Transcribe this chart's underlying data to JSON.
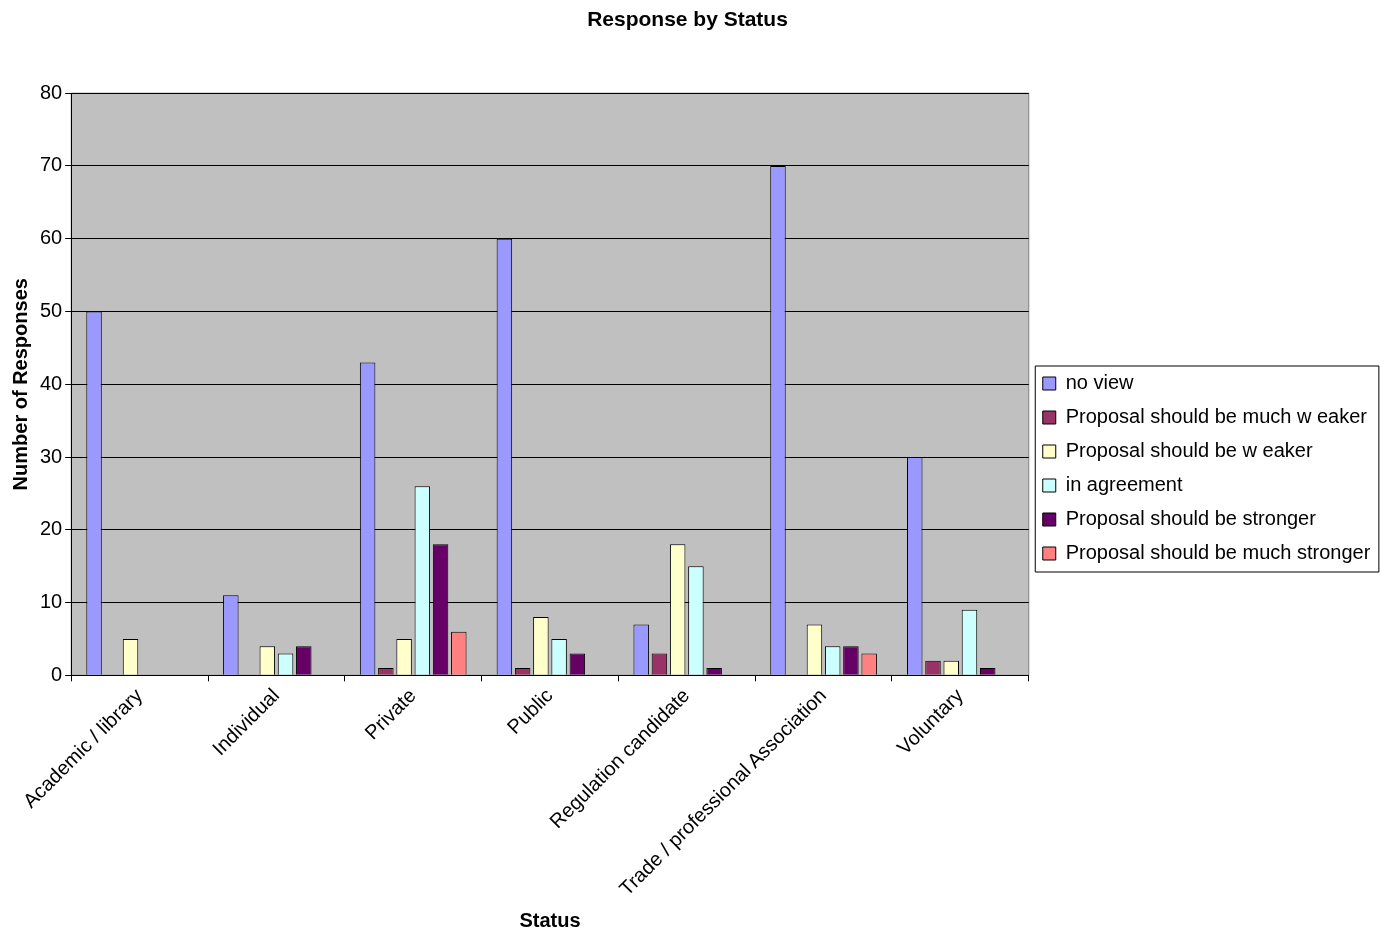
{
  "chart_data": {
    "type": "bar",
    "title": "Response by Status",
    "xlabel": "Status",
    "ylabel": "Number of Responses",
    "categories": [
      "Academic / library",
      "Individual",
      "Private",
      "Public",
      "Regulation candidate",
      "Trade / professional Association",
      "Voluntary"
    ],
    "series": [
      {
        "name": "no view",
        "color": "#9999ff",
        "values": [
          50,
          11,
          43,
          60,
          7,
          70,
          30
        ]
      },
      {
        "name": "Proposal should be much w eaker",
        "color": "#993366",
        "values": [
          0,
          0,
          1,
          1,
          3,
          0,
          2
        ]
      },
      {
        "name": "Proposal should be w eaker",
        "color": "#ffffcc",
        "values": [
          5,
          4,
          5,
          8,
          18,
          7,
          2
        ]
      },
      {
        "name": "in agreement",
        "color": "#ccffff",
        "values": [
          0,
          3,
          26,
          5,
          15,
          4,
          9
        ]
      },
      {
        "name": "Proposal should be stronger",
        "color": "#660066",
        "values": [
          0,
          4,
          18,
          3,
          1,
          4,
          1
        ]
      },
      {
        "name": "Proposal should be much stronger",
        "color": "#ff8080",
        "values": [
          0,
          0,
          6,
          0,
          0,
          3,
          0
        ]
      }
    ],
    "ylim": [
      0,
      80
    ],
    "yticks": [
      0,
      10,
      20,
      30,
      40,
      50,
      60,
      70,
      80
    ],
    "grid": "y",
    "legend": "right"
  }
}
